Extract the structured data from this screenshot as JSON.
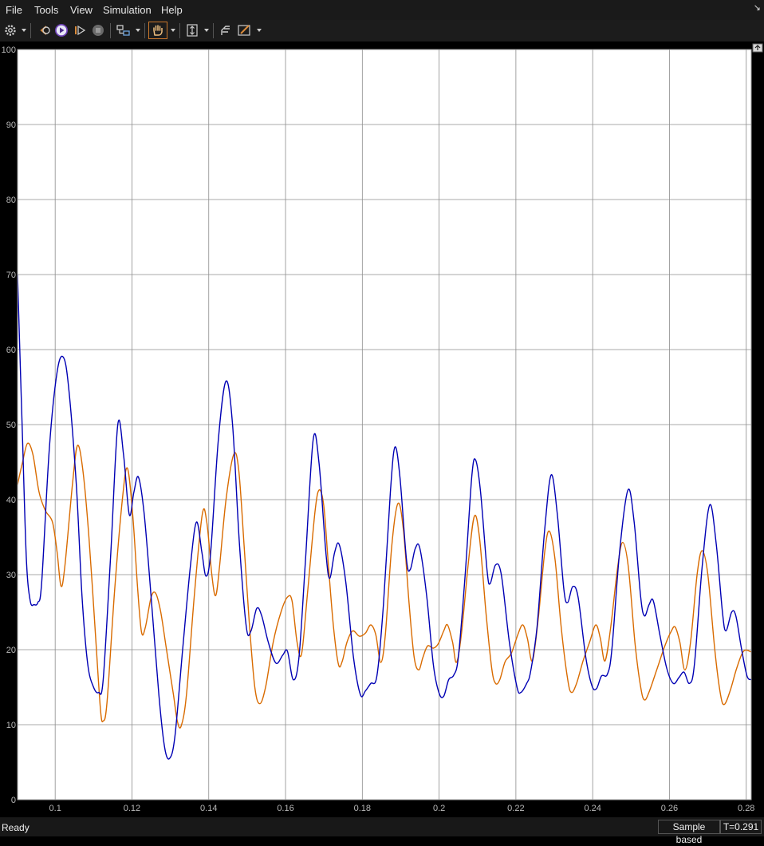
{
  "menu": {
    "file": "File",
    "tools": "Tools",
    "view": "View",
    "simulation": "Simulation",
    "help": "Help"
  },
  "toolbar": {
    "icons": [
      "gear-icon",
      "highlight-block-icon",
      "run-icon",
      "step-forward-icon",
      "stop-icon",
      "signal-selector-icon",
      "pan-icon",
      "zoom-y-icon",
      "cursor-measure-icon",
      "style-icon"
    ]
  },
  "status": {
    "ready": "Ready",
    "mode": "Sample based",
    "time": "T=0.291"
  },
  "colors": {
    "background": "#ffffff",
    "grid": "#8c8c8c",
    "series1": "#0000b4",
    "series2": "#d96b00"
  },
  "chart_data": {
    "type": "line",
    "title": "",
    "xlabel": "",
    "ylabel": "",
    "xlim": [
      0.0902,
      0.2813
    ],
    "ylim": [
      0,
      100
    ],
    "xticks": [
      0.1,
      0.12,
      0.14,
      0.16,
      0.18,
      0.2,
      0.22,
      0.24,
      0.26,
      0.28
    ],
    "xtick_labels": [
      "0.1",
      "0.12",
      "0.14",
      "0.16",
      "0.18",
      "0.2",
      "0.22",
      "0.24",
      "0.26",
      "0.28"
    ],
    "yticks": [
      0,
      10,
      20,
      30,
      40,
      50,
      60,
      70,
      80,
      90,
      100
    ],
    "ytick_labels": [
      "0",
      "10",
      "20",
      "30",
      "40",
      "50",
      "60",
      "70",
      "80",
      "90",
      "100"
    ],
    "grid": true,
    "series": [
      {
        "color": "#0000b4",
        "points": [
          [
            0.0902,
            70
          ],
          [
            0.0915,
            48
          ],
          [
            0.0925,
            32
          ],
          [
            0.0935,
            26.5
          ],
          [
            0.0945,
            26
          ],
          [
            0.0955,
            26.3
          ],
          [
            0.0965,
            29
          ],
          [
            0.0985,
            47
          ],
          [
            0.1005,
            57
          ],
          [
            0.1021,
            59
          ],
          [
            0.1035,
            55
          ],
          [
            0.1055,
            42
          ],
          [
            0.107,
            27
          ],
          [
            0.1085,
            18
          ],
          [
            0.11,
            15
          ],
          [
            0.1113,
            14.3
          ],
          [
            0.1125,
            16
          ],
          [
            0.1145,
            33
          ],
          [
            0.1163,
            50
          ],
          [
            0.1178,
            46
          ],
          [
            0.1193,
            38
          ],
          [
            0.1205,
            41
          ],
          [
            0.1217,
            43
          ],
          [
            0.1232,
            38
          ],
          [
            0.125,
            27
          ],
          [
            0.127,
            14
          ],
          [
            0.1285,
            7
          ],
          [
            0.1298,
            5.5
          ],
          [
            0.1312,
            8.5
          ],
          [
            0.1332,
            20
          ],
          [
            0.1352,
            31
          ],
          [
            0.1368,
            37
          ],
          [
            0.1382,
            33
          ],
          [
            0.1393,
            29.8
          ],
          [
            0.1405,
            33
          ],
          [
            0.1425,
            48
          ],
          [
            0.1445,
            55.8
          ],
          [
            0.1462,
            50
          ],
          [
            0.148,
            34
          ],
          [
            0.1498,
            23
          ],
          [
            0.151,
            22.5
          ],
          [
            0.1525,
            25.5
          ],
          [
            0.1538,
            24.5
          ],
          [
            0.1555,
            21
          ],
          [
            0.1575,
            18.2
          ],
          [
            0.1593,
            19.3
          ],
          [
            0.1605,
            19.8
          ],
          [
            0.162,
            16
          ],
          [
            0.1635,
            19
          ],
          [
            0.1652,
            32
          ],
          [
            0.1672,
            48
          ],
          [
            0.1687,
            45
          ],
          [
            0.1705,
            33
          ],
          [
            0.1715,
            29.5
          ],
          [
            0.1728,
            33
          ],
          [
            0.174,
            34
          ],
          [
            0.1757,
            29
          ],
          [
            0.1777,
            19
          ],
          [
            0.1795,
            14
          ],
          [
            0.1808,
            14.5
          ],
          [
            0.1822,
            15.5
          ],
          [
            0.1838,
            16.5
          ],
          [
            0.1855,
            26
          ],
          [
            0.1873,
            41
          ],
          [
            0.1885,
            47
          ],
          [
            0.1898,
            43
          ],
          [
            0.1915,
            32
          ],
          [
            0.1925,
            30.7
          ],
          [
            0.1938,
            33.5
          ],
          [
            0.195,
            33.5
          ],
          [
            0.1968,
            27
          ],
          [
            0.1985,
            18
          ],
          [
            0.2,
            14.2
          ],
          [
            0.2012,
            13.8
          ],
          [
            0.2025,
            16
          ],
          [
            0.2038,
            16.6
          ],
          [
            0.205,
            19
          ],
          [
            0.2068,
            30
          ],
          [
            0.2085,
            43
          ],
          [
            0.2095,
            45.3
          ],
          [
            0.2108,
            41
          ],
          [
            0.2125,
            30.5
          ],
          [
            0.2133,
            28.8
          ],
          [
            0.2147,
            31.3
          ],
          [
            0.2162,
            30
          ],
          [
            0.2183,
            21
          ],
          [
            0.2203,
            15
          ],
          [
            0.2213,
            14.3
          ],
          [
            0.2228,
            15.5
          ],
          [
            0.2238,
            17
          ],
          [
            0.2255,
            23
          ],
          [
            0.2275,
            36
          ],
          [
            0.2292,
            43.3
          ],
          [
            0.2308,
            38
          ],
          [
            0.2325,
            28
          ],
          [
            0.2335,
            26.3
          ],
          [
            0.2348,
            28.4
          ],
          [
            0.2362,
            27
          ],
          [
            0.2382,
            19
          ],
          [
            0.2398,
            15.2
          ],
          [
            0.241,
            14.8
          ],
          [
            0.2423,
            16.5
          ],
          [
            0.2438,
            16.7
          ],
          [
            0.245,
            20
          ],
          [
            0.247,
            33
          ],
          [
            0.2492,
            41.3
          ],
          [
            0.2508,
            37
          ],
          [
            0.2525,
            27
          ],
          [
            0.2535,
            24.5
          ],
          [
            0.2547,
            26
          ],
          [
            0.2558,
            26.5
          ],
          [
            0.2575,
            22
          ],
          [
            0.2593,
            17.5
          ],
          [
            0.261,
            15.5
          ],
          [
            0.2625,
            16.3
          ],
          [
            0.2638,
            17
          ],
          [
            0.2652,
            15.5
          ],
          [
            0.2665,
            18
          ],
          [
            0.2685,
            31
          ],
          [
            0.2705,
            39.3
          ],
          [
            0.2722,
            34
          ],
          [
            0.2738,
            25
          ],
          [
            0.2747,
            22.5
          ],
          [
            0.2762,
            25
          ],
          [
            0.2773,
            24.5
          ],
          [
            0.2788,
            20
          ],
          [
            0.2802,
            16.5
          ],
          [
            0.2813,
            16
          ]
        ]
      },
      {
        "color": "#d96b00",
        "points": [
          [
            0.0902,
            42
          ],
          [
            0.0915,
            45
          ],
          [
            0.0928,
            47.5
          ],
          [
            0.0942,
            46
          ],
          [
            0.0958,
            41
          ],
          [
            0.0975,
            38.5
          ],
          [
            0.0993,
            37
          ],
          [
            0.1005,
            33
          ],
          [
            0.1015,
            28.5
          ],
          [
            0.1025,
            31
          ],
          [
            0.1045,
            42
          ],
          [
            0.1058,
            47.2
          ],
          [
            0.1072,
            44
          ],
          [
            0.1088,
            35
          ],
          [
            0.1105,
            22
          ],
          [
            0.1118,
            12
          ],
          [
            0.1125,
            10.5
          ],
          [
            0.1135,
            13
          ],
          [
            0.1155,
            28
          ],
          [
            0.1175,
            40
          ],
          [
            0.1188,
            44.2
          ],
          [
            0.1202,
            38
          ],
          [
            0.1215,
            28
          ],
          [
            0.1225,
            22.3
          ],
          [
            0.1235,
            23
          ],
          [
            0.125,
            27
          ],
          [
            0.1262,
            27.5
          ],
          [
            0.1275,
            25
          ],
          [
            0.129,
            20
          ],
          [
            0.1308,
            14
          ],
          [
            0.1318,
            10.5
          ],
          [
            0.1328,
            9.8
          ],
          [
            0.1342,
            14
          ],
          [
            0.1362,
            27
          ],
          [
            0.1383,
            38
          ],
          [
            0.1395,
            37
          ],
          [
            0.1408,
            30
          ],
          [
            0.1418,
            27.2
          ],
          [
            0.1428,
            31
          ],
          [
            0.1445,
            40
          ],
          [
            0.1465,
            46
          ],
          [
            0.1478,
            44
          ],
          [
            0.1492,
            34
          ],
          [
            0.1505,
            24
          ],
          [
            0.152,
            15
          ],
          [
            0.1533,
            12.8
          ],
          [
            0.1548,
            15
          ],
          [
            0.1568,
            21
          ],
          [
            0.1588,
            25
          ],
          [
            0.1605,
            27
          ],
          [
            0.1617,
            26.5
          ],
          [
            0.163,
            21
          ],
          [
            0.1642,
            19.5
          ],
          [
            0.1658,
            28
          ],
          [
            0.1677,
            38.5
          ],
          [
            0.1688,
            41.3
          ],
          [
            0.17,
            39
          ],
          [
            0.1712,
            31
          ],
          [
            0.1725,
            23
          ],
          [
            0.1738,
            18
          ],
          [
            0.1748,
            18.5
          ],
          [
            0.176,
            21
          ],
          [
            0.1775,
            22.5
          ],
          [
            0.1792,
            21.8
          ],
          [
            0.1808,
            22.2
          ],
          [
            0.1822,
            23.3
          ],
          [
            0.1835,
            22
          ],
          [
            0.1848,
            18.3
          ],
          [
            0.186,
            22
          ],
          [
            0.1877,
            34
          ],
          [
            0.1893,
            39.5
          ],
          [
            0.1907,
            36
          ],
          [
            0.1922,
            26
          ],
          [
            0.1935,
            19
          ],
          [
            0.1947,
            17.3
          ],
          [
            0.1958,
            19
          ],
          [
            0.197,
            20.5
          ],
          [
            0.1985,
            20.2
          ],
          [
            0.1998,
            20.8
          ],
          [
            0.2012,
            22.5
          ],
          [
            0.2022,
            23.3
          ],
          [
            0.2035,
            21
          ],
          [
            0.2045,
            18.3
          ],
          [
            0.2058,
            22
          ],
          [
            0.2077,
            32
          ],
          [
            0.2092,
            37.8
          ],
          [
            0.2105,
            35
          ],
          [
            0.2122,
            25
          ],
          [
            0.2137,
            17.5
          ],
          [
            0.2147,
            15.5
          ],
          [
            0.2158,
            16
          ],
          [
            0.2172,
            18.4
          ],
          [
            0.2188,
            19.5
          ],
          [
            0.2205,
            22
          ],
          [
            0.2218,
            23.3
          ],
          [
            0.223,
            21.5
          ],
          [
            0.2243,
            18.5
          ],
          [
            0.2258,
            24
          ],
          [
            0.2275,
            33
          ],
          [
            0.2287,
            35.8
          ],
          [
            0.2302,
            32
          ],
          [
            0.2318,
            23
          ],
          [
            0.2335,
            16
          ],
          [
            0.2345,
            14.3
          ],
          [
            0.2358,
            15.5
          ],
          [
            0.2375,
            18.5
          ],
          [
            0.2392,
            21
          ],
          [
            0.2408,
            23.3
          ],
          [
            0.242,
            21.5
          ],
          [
            0.2432,
            18.5
          ],
          [
            0.2447,
            23
          ],
          [
            0.2465,
            31
          ],
          [
            0.2478,
            34.3
          ],
          [
            0.2493,
            31
          ],
          [
            0.251,
            21
          ],
          [
            0.2525,
            15
          ],
          [
            0.2535,
            13.3
          ],
          [
            0.2548,
            14.5
          ],
          [
            0.2568,
            17.5
          ],
          [
            0.2588,
            20.5
          ],
          [
            0.2605,
            22.5
          ],
          [
            0.2615,
            23
          ],
          [
            0.2627,
            21
          ],
          [
            0.264,
            17.3
          ],
          [
            0.2655,
            21
          ],
          [
            0.2672,
            30
          ],
          [
            0.2685,
            33.2
          ],
          [
            0.27,
            30
          ],
          [
            0.2718,
            20
          ],
          [
            0.2733,
            14
          ],
          [
            0.2743,
            12.7
          ],
          [
            0.2758,
            14.5
          ],
          [
            0.2775,
            17.5
          ],
          [
            0.2793,
            19.8
          ],
          [
            0.2813,
            19.7
          ]
        ]
      }
    ]
  }
}
